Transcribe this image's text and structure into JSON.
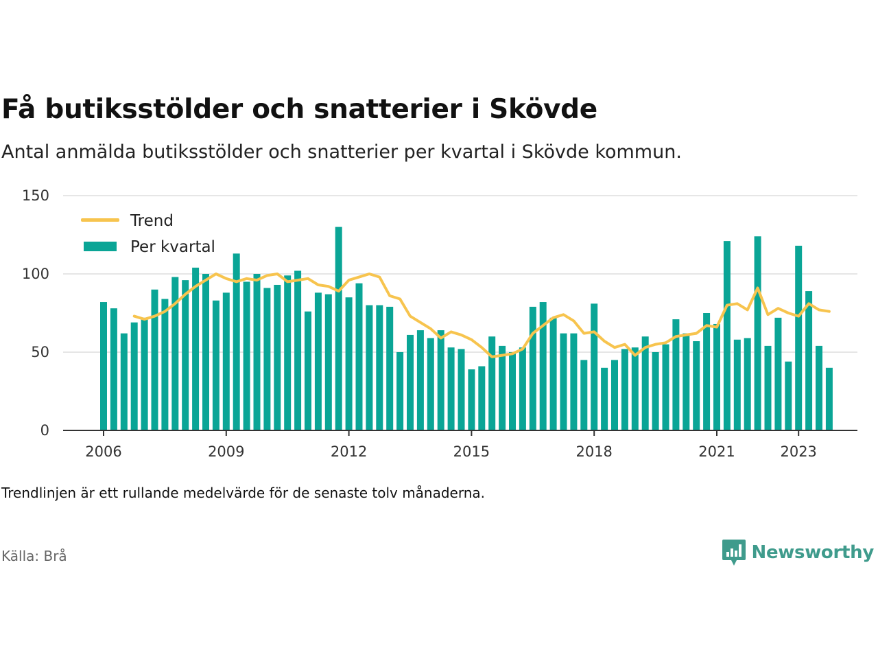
{
  "header": {
    "title": "Få butiksstölder och snatterier i Skövde",
    "subtitle": "Antal anmälda butiksstölder och snatterier per kvartal i Skövde kommun."
  },
  "footer": {
    "note": "Trendlinjen är ett rullande medelvärde för de senaste tolv månaderna.",
    "source": "Källa: Brå",
    "brand": "Newsworthy"
  },
  "colors": {
    "bars": "#0aa596",
    "trend": "#f7c44e",
    "grid": "#dddddd",
    "axis": "#333333",
    "brand": "#3f9b8c"
  },
  "chart_data": {
    "type": "bar",
    "x_start": "2006 Q1",
    "x_ticks": [
      "2006",
      "2009",
      "2012",
      "2015",
      "2018",
      "2021",
      "2023"
    ],
    "y_ticks": [
      0,
      50,
      100,
      150
    ],
    "ylim": [
      0,
      150
    ],
    "grid": true,
    "legend_position": "top-left",
    "series": [
      {
        "name": "Per kvartal",
        "kind": "bar",
        "values": [
          82,
          78,
          62,
          69,
          72,
          90,
          84,
          98,
          96,
          104,
          100,
          83,
          88,
          113,
          95,
          100,
          91,
          93,
          99,
          102,
          76,
          88,
          87,
          130,
          85,
          94,
          80,
          80,
          79,
          50,
          61,
          64,
          59,
          64,
          53,
          52,
          39,
          41,
          60,
          54,
          50,
          53,
          79,
          82,
          72,
          62,
          62,
          45,
          81,
          40,
          45,
          52,
          53,
          60,
          50,
          55,
          71,
          62,
          57,
          75,
          68,
          121,
          58,
          59,
          124,
          54,
          72,
          44,
          118,
          89,
          54,
          40
        ]
      },
      {
        "name": "Trend",
        "kind": "line",
        "start_index": 3,
        "values": [
          73,
          71,
          73,
          76,
          81,
          87,
          92,
          96,
          100,
          97,
          95,
          97,
          96,
          99,
          100,
          95,
          96,
          97,
          93,
          92,
          89,
          96,
          98,
          100,
          98,
          86,
          84,
          73,
          69,
          65,
          59,
          63,
          61,
          58,
          53,
          47,
          48,
          49,
          52,
          62,
          67,
          72,
          74,
          70,
          62,
          63,
          57,
          53,
          55,
          48,
          53,
          55,
          56,
          60,
          61,
          62,
          67,
          66,
          80,
          81,
          77,
          91,
          74,
          78,
          75,
          73,
          81,
          77,
          76
        ]
      }
    ]
  }
}
